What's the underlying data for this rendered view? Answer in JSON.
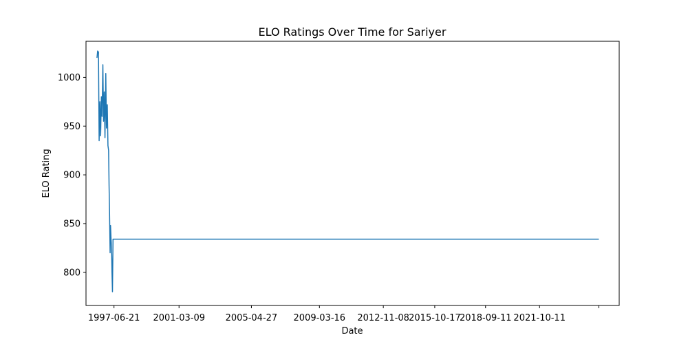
{
  "chart_data": {
    "type": "line",
    "title": "ELO Ratings Over Time for Sariyer",
    "xlabel": "Date",
    "ylabel": "ELO Rating",
    "grid": false,
    "legend": "none",
    "line_color": "#1f77b4",
    "xlim": [
      "1995-11-15",
      "2026-04-30"
    ],
    "ylim": [
      766,
      1037
    ],
    "x_tick_labels": [
      "1997-06-21",
      "2001-03-09",
      "2005-04-27",
      "2009-03-16",
      "2012-11-08",
      "2015-10-17",
      "2018-09-11",
      "2021-10-11",
      ""
    ],
    "x_ticks": [
      "1997-06-21",
      "2001-03-09",
      "2005-04-27",
      "2009-03-16",
      "2012-11-08",
      "2015-10-17",
      "2018-09-11",
      "2021-10-11",
      "2025-03-01"
    ],
    "y_ticks": [
      800,
      850,
      900,
      950,
      1000
    ],
    "y_tick_labels": [
      "800",
      "850",
      "900",
      "950",
      "1000"
    ],
    "series": [
      {
        "x": [
          "1996-07-01",
          "1996-07-15",
          "1996-08-01",
          "1996-08-15",
          "1996-09-01",
          "1996-09-15",
          "1996-10-01",
          "1996-10-15",
          "1996-11-01",
          "1996-11-15",
          "1996-12-01",
          "1996-12-15",
          "1997-01-01",
          "1997-01-15",
          "1997-02-01",
          "1997-02-15",
          "1997-03-01",
          "1997-03-10",
          "1997-03-20",
          "1997-04-01",
          "1997-04-10",
          "1997-04-20",
          "1997-05-01",
          "1997-05-10",
          "1997-05-20",
          "1997-06-01",
          "1997-06-10",
          "1997-06-21",
          "1997-07-01",
          "1997-07-10",
          "2025-03-01"
        ],
        "y": [
          1020,
          1027,
          1026,
          935,
          975,
          940,
          980,
          960,
          1013,
          955,
          985,
          938,
          1004,
          948,
          972,
          930,
          925,
          890,
          862,
          820,
          848,
          835,
          825,
          800,
          780,
          834,
          834,
          834,
          834,
          834,
          834
        ]
      }
    ]
  }
}
